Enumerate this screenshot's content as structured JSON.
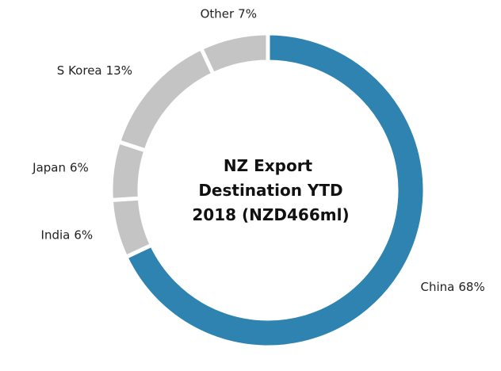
{
  "chart_data": {
    "type": "donut",
    "title": "NZ Export Destination YTD 2018 (NZD466ml)",
    "categories": [
      "China",
      "India",
      "Japan",
      "S Korea",
      "Other"
    ],
    "values": [
      68,
      6,
      6,
      13,
      7
    ],
    "value_labels": [
      "68%",
      "6%",
      "6%",
      "13%",
      "7%"
    ],
    "colors": [
      "#2e83b0",
      "#c4c4c4",
      "#c4c4c4",
      "#c4c4c4",
      "#c4c4c4"
    ]
  }
}
